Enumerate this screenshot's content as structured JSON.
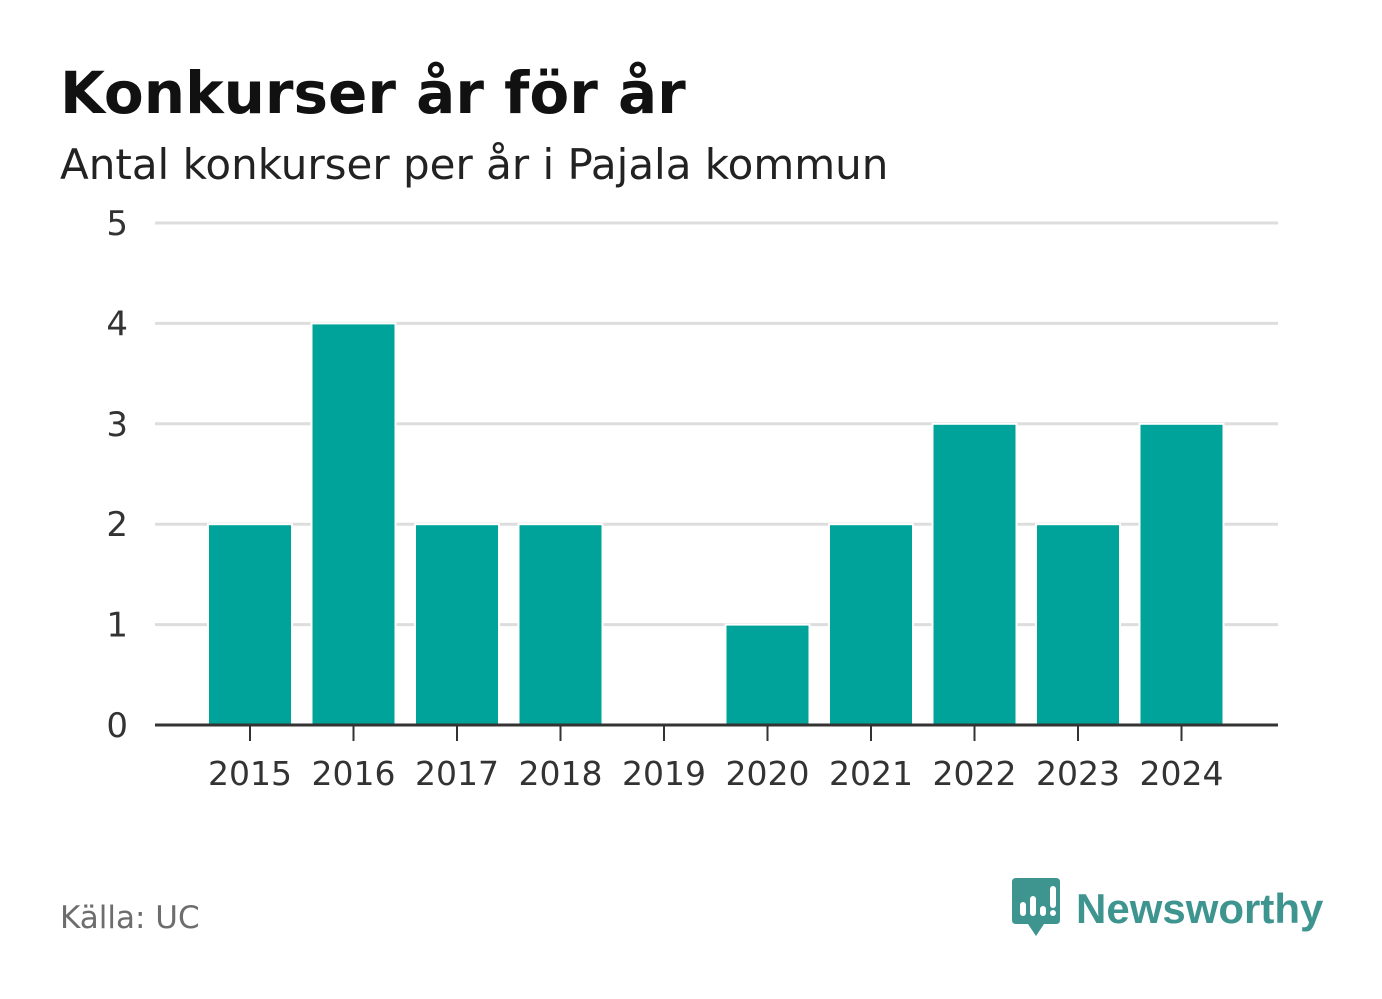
{
  "header": {
    "title": "Konkurser år för år",
    "subtitle": "Antal konkurser per år i Pajala kommun"
  },
  "footer": {
    "source": "Källa: UC",
    "brand": "Newsworthy",
    "brand_icon": "newsworthy-logo-icon"
  },
  "colors": {
    "bar": "#00a39a",
    "grid": "#dddddd",
    "axis": "#333333",
    "brand": "#3e948f"
  },
  "chart_data": {
    "type": "bar",
    "title": "Konkurser år för år",
    "subtitle": "Antal konkurser per år i Pajala kommun",
    "xlabel": "",
    "ylabel": "",
    "categories": [
      "2015",
      "2016",
      "2017",
      "2018",
      "2019",
      "2020",
      "2021",
      "2022",
      "2023",
      "2024"
    ],
    "values": [
      2,
      4,
      2,
      2,
      0,
      1,
      2,
      3,
      2,
      3
    ],
    "ylim": [
      0,
      5
    ],
    "yticks": [
      0,
      1,
      2,
      3,
      4,
      5
    ],
    "grid": true,
    "legend": "none"
  }
}
